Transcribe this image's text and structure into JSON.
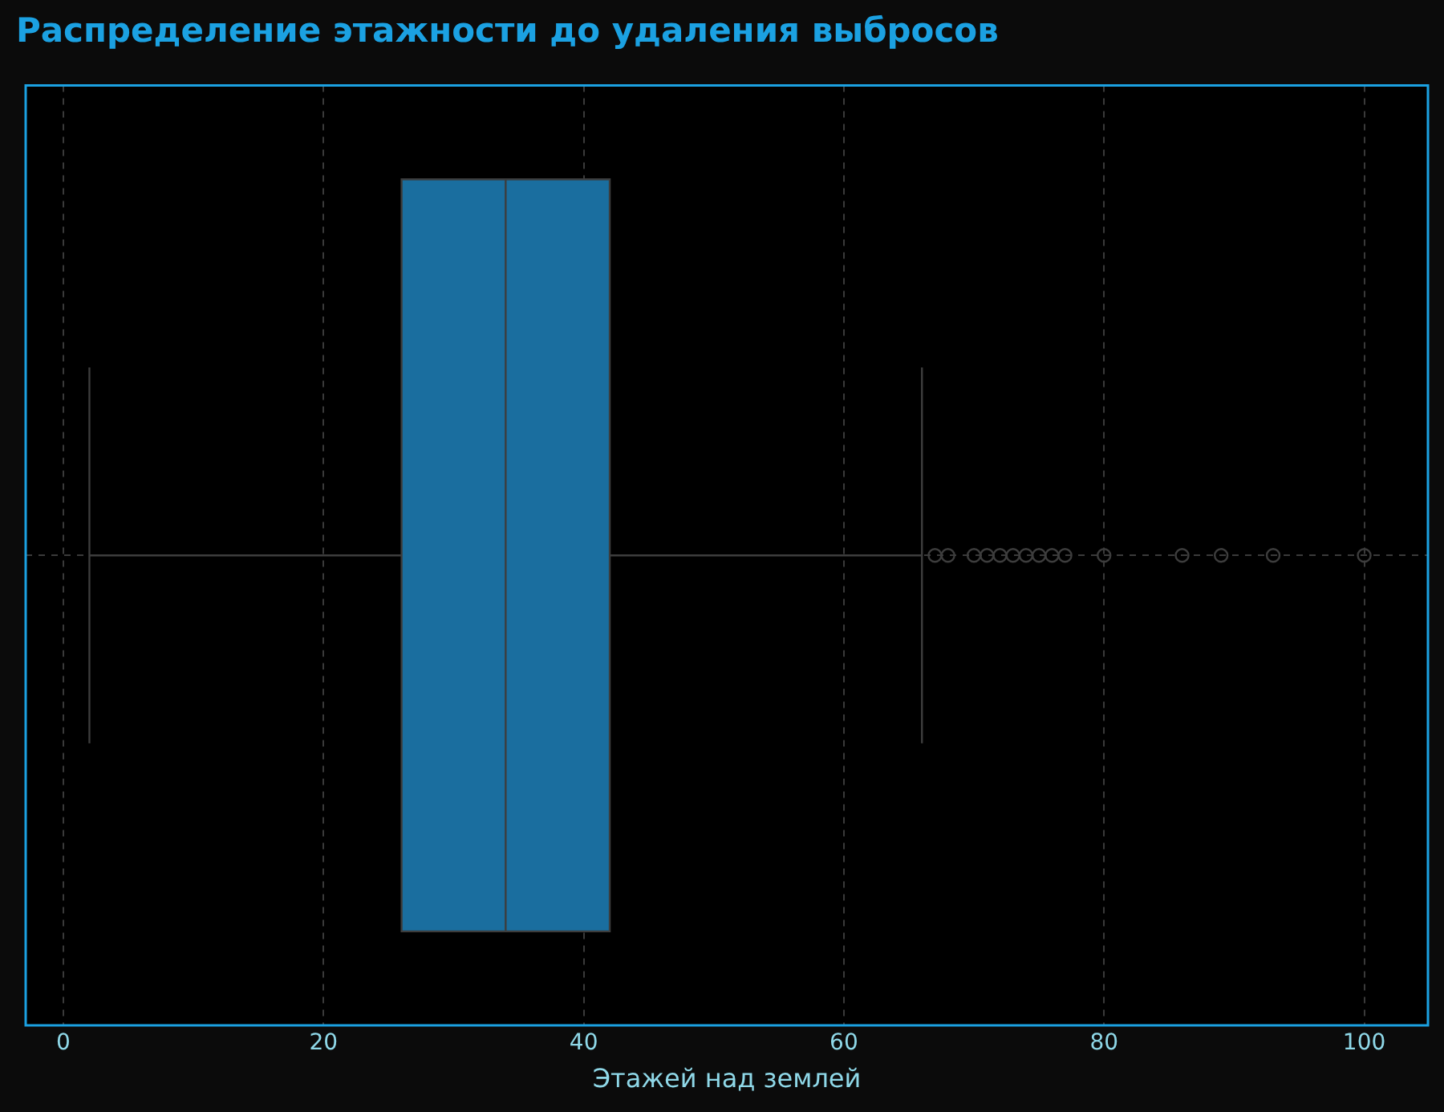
{
  "chart_data": {
    "type": "box",
    "title": "Распределение этажности до удаления выбросов",
    "xlabel": "Этажей над землей",
    "orientation": "horizontal",
    "categories": [
      null
    ],
    "color": "#1a6e9f",
    "boxes": [
      {
        "low": 2,
        "q1": 26,
        "median": 34,
        "q3": 42,
        "high": 66,
        "outliers": [
          67,
          68,
          70,
          71,
          72,
          73,
          74,
          75,
          76,
          77,
          80,
          86,
          89,
          93,
          100
        ]
      }
    ],
    "xlim": [
      -2.9,
      104.9
    ],
    "xticks": [
      0,
      20,
      40,
      60,
      80,
      100
    ],
    "grid": true,
    "legend": false
  }
}
